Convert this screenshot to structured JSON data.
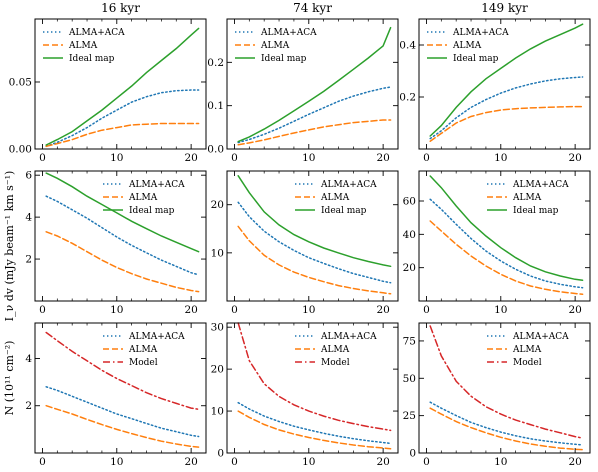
{
  "colors": {
    "ALMA+ACA": "#1f77b4",
    "ALMA": "#ff7f0e",
    "Ideal map": "#2ca02c",
    "Model": "#d62728"
  },
  "ylabels": {
    "row1": "I_ν dv (mJy beam⁻¹ km s⁻¹)",
    "row2": "N (10¹¹ cm⁻²)"
  },
  "chart_data": [
    {
      "type": "line",
      "row": 0,
      "col": 0,
      "title": "16 kyr",
      "xlim": [
        -1,
        22
      ],
      "ylim": [
        0,
        0.097
      ],
      "xticks": [
        0,
        10,
        20
      ],
      "xticklabels": [
        "0",
        "10",
        "20"
      ],
      "yticks": [
        0,
        0.05
      ],
      "yticklabels": [
        "0.00",
        "0.05"
      ],
      "legend": "upper-left",
      "x": [
        0.5,
        2,
        4,
        6,
        8,
        10,
        12,
        14,
        16,
        18,
        20,
        21
      ],
      "series": [
        {
          "name": "ALMA+ACA",
          "style": "dotted",
          "values": [
            0.002,
            0.005,
            0.01,
            0.016,
            0.023,
            0.029,
            0.035,
            0.039,
            0.042,
            0.0435,
            0.044,
            0.044
          ]
        },
        {
          "name": "ALMA",
          "style": "dashed",
          "values": [
            0.002,
            0.004,
            0.007,
            0.011,
            0.014,
            0.016,
            0.018,
            0.0185,
            0.019,
            0.019,
            0.019,
            0.019
          ]
        },
        {
          "name": "Ideal map",
          "style": "solid",
          "values": [
            0.003,
            0.007,
            0.013,
            0.021,
            0.029,
            0.038,
            0.047,
            0.057,
            0.066,
            0.075,
            0.085,
            0.09
          ]
        }
      ]
    },
    {
      "type": "line",
      "row": 0,
      "col": 1,
      "title": "74 kyr",
      "xlim": [
        -1,
        22
      ],
      "ylim": [
        0,
        0.3
      ],
      "xticks": [
        0,
        10,
        20
      ],
      "xticklabels": [
        "0",
        "10",
        "20"
      ],
      "yticks": [
        0,
        0.1,
        0.2
      ],
      "yticklabels": [
        "0.0",
        "0.1",
        "0.2"
      ],
      "legend": "upper-left",
      "x": [
        0.5,
        2,
        4,
        6,
        8,
        10,
        12,
        14,
        16,
        18,
        20,
        21
      ],
      "series": [
        {
          "name": "ALMA+ACA",
          "style": "dotted",
          "values": [
            0.015,
            0.022,
            0.034,
            0.048,
            0.064,
            0.08,
            0.095,
            0.11,
            0.122,
            0.132,
            0.14,
            0.143
          ]
        },
        {
          "name": "ALMA",
          "style": "dashed",
          "values": [
            0.01,
            0.014,
            0.021,
            0.029,
            0.037,
            0.044,
            0.051,
            0.056,
            0.061,
            0.064,
            0.067,
            0.067
          ]
        },
        {
          "name": "Ideal map",
          "style": "solid",
          "values": [
            0.017,
            0.028,
            0.046,
            0.066,
            0.088,
            0.11,
            0.133,
            0.158,
            0.184,
            0.21,
            0.238,
            0.28
          ]
        }
      ]
    },
    {
      "type": "line",
      "row": 0,
      "col": 2,
      "title": "149 kyr",
      "xlim": [
        -1,
        22
      ],
      "ylim": [
        0,
        0.5
      ],
      "xticks": [
        0,
        10,
        20
      ],
      "xticklabels": [
        "0",
        "10",
        "20"
      ],
      "yticks": [
        0.2,
        0.4
      ],
      "yticklabels": [
        "0.2",
        "0.4"
      ],
      "legend": "upper-left",
      "x": [
        0.5,
        2,
        4,
        6,
        8,
        10,
        12,
        14,
        16,
        18,
        20,
        21
      ],
      "series": [
        {
          "name": "ALMA+ACA",
          "style": "dotted",
          "values": [
            0.04,
            0.07,
            0.12,
            0.16,
            0.19,
            0.215,
            0.235,
            0.25,
            0.262,
            0.27,
            0.275,
            0.277
          ]
        },
        {
          "name": "ALMA",
          "style": "dashed",
          "values": [
            0.03,
            0.06,
            0.1,
            0.125,
            0.14,
            0.15,
            0.155,
            0.158,
            0.16,
            0.162,
            0.163,
            0.163
          ]
        },
        {
          "name": "Ideal map",
          "style": "solid",
          "values": [
            0.05,
            0.09,
            0.16,
            0.22,
            0.27,
            0.31,
            0.35,
            0.385,
            0.415,
            0.44,
            0.465,
            0.48
          ]
        }
      ]
    },
    {
      "type": "line",
      "row": 1,
      "col": 0,
      "xlim": [
        -1,
        22
      ],
      "ylim": [
        0,
        6.2
      ],
      "xticks": [
        0,
        10,
        20
      ],
      "xticklabels": [
        "0",
        "10",
        "20"
      ],
      "yticks": [
        2,
        4,
        6
      ],
      "yticklabels": [
        "2",
        "4",
        "6"
      ],
      "legend": "upper-right",
      "x": [
        0.5,
        2,
        4,
        6,
        8,
        10,
        12,
        14,
        16,
        18,
        20,
        21
      ],
      "series": [
        {
          "name": "ALMA+ACA",
          "style": "dotted",
          "values": [
            5.0,
            4.75,
            4.35,
            3.95,
            3.5,
            3.05,
            2.65,
            2.3,
            1.95,
            1.65,
            1.35,
            1.25
          ]
        },
        {
          "name": "ALMA",
          "style": "dashed",
          "values": [
            3.3,
            3.1,
            2.75,
            2.35,
            1.95,
            1.6,
            1.3,
            1.05,
            0.85,
            0.65,
            0.5,
            0.45
          ]
        },
        {
          "name": "Ideal map",
          "style": "solid",
          "values": [
            6.1,
            5.85,
            5.45,
            5.0,
            4.6,
            4.2,
            3.8,
            3.45,
            3.1,
            2.8,
            2.5,
            2.35
          ]
        }
      ]
    },
    {
      "type": "line",
      "row": 1,
      "col": 1,
      "xlim": [
        -1,
        22
      ],
      "ylim": [
        0,
        27
      ],
      "xticks": [
        0,
        10,
        20
      ],
      "xticklabels": [
        "0",
        "10",
        "20"
      ],
      "yticks": [
        10,
        20
      ],
      "yticklabels": [
        "10",
        "20"
      ],
      "legend": "upper-right",
      "x": [
        0.5,
        2,
        4,
        6,
        8,
        10,
        12,
        14,
        16,
        18,
        20,
        21
      ],
      "series": [
        {
          "name": "ALMA+ACA",
          "style": "dotted",
          "values": [
            20.5,
            17.5,
            14.5,
            12.3,
            10.5,
            9.0,
            7.8,
            6.7,
            5.7,
            4.9,
            4.1,
            3.8
          ]
        },
        {
          "name": "ALMA",
          "style": "dashed",
          "values": [
            15.5,
            12.5,
            9.5,
            7.5,
            6.0,
            4.9,
            4.0,
            3.2,
            2.6,
            2.1,
            1.7,
            1.5
          ]
        },
        {
          "name": "Ideal map",
          "style": "solid",
          "values": [
            26.0,
            22.5,
            18.5,
            15.8,
            13.8,
            12.3,
            11.0,
            10.0,
            9.0,
            8.2,
            7.5,
            7.2
          ]
        }
      ]
    },
    {
      "type": "line",
      "row": 1,
      "col": 2,
      "xlim": [
        -1,
        22
      ],
      "ylim": [
        0,
        78
      ],
      "xticks": [
        0,
        10,
        20
      ],
      "xticklabels": [
        "0",
        "10",
        "20"
      ],
      "yticks": [
        20,
        40,
        60
      ],
      "yticklabels": [
        "20",
        "40",
        "60"
      ],
      "legend": "upper-right",
      "x": [
        0.5,
        2,
        4,
        6,
        8,
        10,
        12,
        14,
        16,
        18,
        20,
        21
      ],
      "series": [
        {
          "name": "ALMA+ACA",
          "style": "dotted",
          "values": [
            61,
            55,
            46,
            37.5,
            30,
            24,
            19,
            15,
            12,
            10,
            8.5,
            8
          ]
        },
        {
          "name": "ALMA",
          "style": "dashed",
          "values": [
            48,
            42,
            34,
            27,
            21,
            16,
            12,
            9,
            7,
            5.5,
            4.5,
            4
          ]
        },
        {
          "name": "Ideal map",
          "style": "solid",
          "values": [
            75,
            68,
            57,
            47,
            39,
            32,
            26,
            21,
            17.5,
            15,
            13,
            12.5
          ]
        }
      ]
    },
    {
      "type": "line",
      "row": 2,
      "col": 0,
      "xlim": [
        -1,
        22
      ],
      "ylim": [
        0,
        5.5
      ],
      "xticks": [
        0,
        10,
        20
      ],
      "xticklabels": [
        "0",
        "10",
        "20"
      ],
      "yticks": [
        2,
        4
      ],
      "yticklabels": [
        "2",
        "4"
      ],
      "legend": "upper-right",
      "x": [
        0.5,
        2,
        4,
        6,
        8,
        10,
        12,
        14,
        16,
        18,
        20,
        21
      ],
      "series": [
        {
          "name": "ALMA+ACA",
          "style": "dotted",
          "values": [
            2.8,
            2.65,
            2.4,
            2.15,
            1.9,
            1.65,
            1.45,
            1.25,
            1.05,
            0.9,
            0.75,
            0.7
          ]
        },
        {
          "name": "ALMA",
          "style": "dashed",
          "values": [
            2.0,
            1.85,
            1.65,
            1.42,
            1.2,
            1.0,
            0.82,
            0.65,
            0.5,
            0.38,
            0.28,
            0.25
          ]
        },
        {
          "name": "Model",
          "style": "dashdot",
          "values": [
            5.1,
            4.75,
            4.3,
            3.9,
            3.5,
            3.15,
            2.85,
            2.55,
            2.3,
            2.1,
            1.9,
            1.85
          ]
        }
      ]
    },
    {
      "type": "line",
      "row": 2,
      "col": 1,
      "xlim": [
        -1,
        22
      ],
      "ylim": [
        0,
        31
      ],
      "xticks": [
        0,
        10,
        20
      ],
      "xticklabels": [
        "0",
        "10",
        "20"
      ],
      "yticks": [
        0,
        10,
        20,
        30
      ],
      "yticklabels": [
        "0",
        "10",
        "20",
        "30"
      ],
      "legend": "upper-right",
      "x": [
        0.5,
        2,
        4,
        6,
        8,
        10,
        12,
        14,
        16,
        18,
        20,
        21
      ],
      "series": [
        {
          "name": "ALMA+ACA",
          "style": "dotted",
          "values": [
            12,
            10.5,
            8.8,
            7.5,
            6.4,
            5.5,
            4.7,
            4.0,
            3.4,
            2.9,
            2.5,
            2.3
          ]
        },
        {
          "name": "ALMA",
          "style": "dashed",
          "values": [
            10,
            8.5,
            6.8,
            5.5,
            4.5,
            3.7,
            3.0,
            2.4,
            1.9,
            1.5,
            1.2,
            1.0
          ]
        },
        {
          "name": "Model",
          "style": "dashdot",
          "values": [
            31,
            22,
            16.5,
            13.5,
            11.5,
            10.0,
            8.8,
            7.8,
            7.0,
            6.3,
            5.7,
            5.4
          ]
        }
      ]
    },
    {
      "type": "line",
      "row": 2,
      "col": 2,
      "xlim": [
        -1,
        22
      ],
      "ylim": [
        0,
        87
      ],
      "xticks": [
        0,
        10,
        20
      ],
      "xticklabels": [
        "0",
        "10",
        "20"
      ],
      "yticks": [
        0,
        25,
        50,
        75
      ],
      "yticklabels": [
        "0",
        "25",
        "50",
        "75"
      ],
      "legend": "upper-right",
      "x": [
        0.5,
        2,
        4,
        6,
        8,
        10,
        12,
        14,
        16,
        18,
        20,
        21
      ],
      "series": [
        {
          "name": "ALMA+ACA",
          "style": "dotted",
          "values": [
            34,
            30,
            25,
            20.5,
            17,
            14,
            11.5,
            9.5,
            8,
            6.8,
            5.8,
            5.4
          ]
        },
        {
          "name": "ALMA",
          "style": "dashed",
          "values": [
            30,
            26,
            21,
            17,
            13.5,
            10.5,
            8,
            6,
            4.5,
            3.3,
            2.5,
            2.2
          ]
        },
        {
          "name": "Model",
          "style": "dashdot",
          "values": [
            85,
            65,
            48,
            38,
            31,
            26,
            22,
            19,
            16,
            13.5,
            11,
            10
          ]
        }
      ]
    }
  ]
}
